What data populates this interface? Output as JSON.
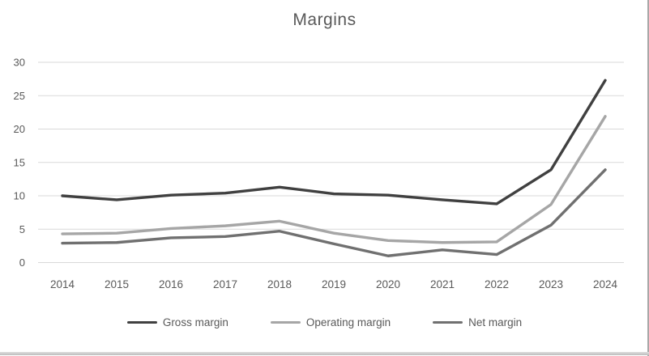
{
  "chart_data": {
    "type": "line",
    "title": "Margins",
    "categories": [
      "2014",
      "2015",
      "2016",
      "2017",
      "2018",
      "2019",
      "2020",
      "2021",
      "2022",
      "2023",
      "2024"
    ],
    "series": [
      {
        "name": "Gross margin",
        "color": "#404040",
        "values": [
          10.0,
          9.4,
          10.1,
          10.4,
          11.3,
          10.3,
          10.1,
          9.4,
          8.8,
          13.9,
          27.3
        ]
      },
      {
        "name": "Operating margin",
        "color": "#a6a6a6",
        "values": [
          4.3,
          4.4,
          5.1,
          5.5,
          6.2,
          4.4,
          3.3,
          3.0,
          3.1,
          8.7,
          21.9
        ]
      },
      {
        "name": "Net margin",
        "color": "#707070",
        "values": [
          2.9,
          3.0,
          3.7,
          3.9,
          4.7,
          2.8,
          1.0,
          1.9,
          1.2,
          5.6,
          13.9
        ]
      }
    ],
    "ylim": [
      0,
      30
    ],
    "ytick_step": 5,
    "yticks": [
      "0",
      "5",
      "10",
      "15",
      "20",
      "25",
      "30"
    ],
    "grid": true,
    "legend_position": "bottom",
    "xlabel": "",
    "ylabel": "",
    "text_color": "#595959",
    "gridline_color": "#d9d9d9"
  }
}
